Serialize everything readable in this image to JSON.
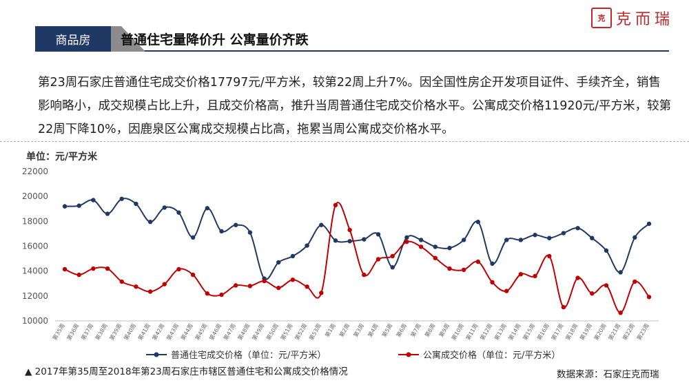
{
  "brand": {
    "seal_text": "克而瑞",
    "name": "克而瑞"
  },
  "header": {
    "tag": "商品房",
    "title": "普通住宅量降价升 公寓量价齐跌"
  },
  "description": "第23周石家庄普通住宅成交价格17797元/平方米，较第22周上升7%。因全国性房企开发项目证件、手续齐全，销售影响略小，成交规模占比上升，且成交价格高，推升当周普通住宅成交价格水平。公寓成交价格11920元/平方米，较第22周下降10%，因鹿泉区公寓成交规模占比高，拖累当周公寓成交价格水平。",
  "footnote": "▲ 2017年第35周至2018年第23周石家庄市辖区普通住宅和公寓成交价格情况",
  "source": "数据来源：石家庄克而瑞",
  "colors": {
    "residential": "#1f3864",
    "apartment": "#c00000",
    "header": "#1f3864"
  },
  "chart_data": {
    "type": "line",
    "ylabel": "单位：元/平方米",
    "ylim": [
      10000,
      22000
    ],
    "yticks": [
      10000,
      12000,
      14000,
      16000,
      18000,
      20000,
      22000
    ],
    "grid": false,
    "legend_position": "bottom",
    "categories": [
      "第35周",
      "第36周",
      "第37周",
      "第38周",
      "第39周",
      "第40周",
      "第41周",
      "第42周",
      "第43周",
      "第44周",
      "第45周",
      "第46周",
      "第47周",
      "第48周",
      "第49周",
      "第50周",
      "第51周",
      "第52周",
      "第53周",
      "第1周",
      "第2周",
      "第3周",
      "第4周",
      "第5周",
      "第6周",
      "第7周",
      "第8周",
      "第9周",
      "第10周",
      "第11周",
      "第12周",
      "第13周",
      "第14周",
      "第15周",
      "第16周",
      "第17周",
      "第18周",
      "第19周",
      "第20周",
      "第21周",
      "第22周",
      "第23周"
    ],
    "series": [
      {
        "name": "普通住宅成交价格（单位：元/平方米）",
        "color": "#1f3864",
        "values": [
          19200,
          19250,
          19700,
          18600,
          19800,
          19400,
          17950,
          19100,
          18700,
          16700,
          19050,
          17200,
          17700,
          17100,
          13400,
          14700,
          15200,
          16050,
          17700,
          16450,
          16400,
          16550,
          16950,
          14300,
          16700,
          16500,
          15950,
          15850,
          16500,
          17950,
          14600,
          16500,
          16500,
          16900,
          16650,
          17050,
          17450,
          16650,
          15650,
          13900,
          16700,
          17797
        ]
      },
      {
        "name": "公寓成交价格（单位：元/平方米）",
        "color": "#c00000",
        "values": [
          14150,
          13700,
          14200,
          14200,
          13150,
          12750,
          12350,
          12950,
          14150,
          13700,
          12200,
          12100,
          12850,
          12800,
          13200,
          12650,
          13300,
          12750,
          12250,
          19300,
          17300,
          13700,
          14950,
          15200,
          16350,
          15950,
          15050,
          14200,
          14100,
          14750,
          13100,
          12400,
          13750,
          13600,
          15200,
          11100,
          13450,
          12200,
          12850,
          10650,
          13150,
          11920
        ]
      }
    ]
  }
}
